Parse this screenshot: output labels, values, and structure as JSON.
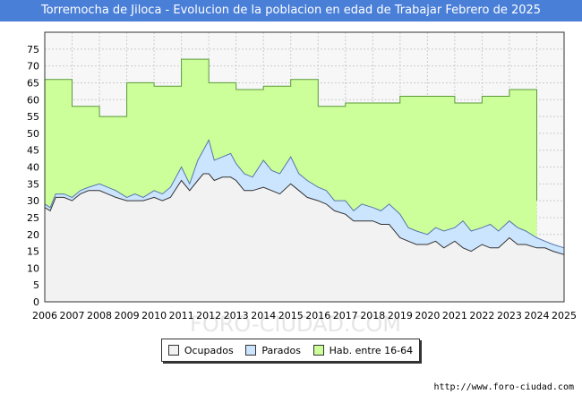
{
  "chart_data": {
    "type": "area",
    "title": "Torremocha de Jiloca - Evolucion de la poblacion en edad de Trabajar Febrero de 2025",
    "xlabel": "",
    "ylabel": "",
    "ylim": [
      0,
      80
    ],
    "xlim": [
      2006,
      2025
    ],
    "yticks": [
      0,
      5,
      10,
      15,
      20,
      25,
      30,
      35,
      40,
      45,
      50,
      55,
      60,
      65,
      70,
      75
    ],
    "xticks": [
      "2006",
      "2007",
      "2008",
      "2009",
      "2010",
      "2011",
      "2012",
      "2013",
      "2014",
      "2015",
      "2016",
      "2017",
      "2018",
      "2019",
      "2020",
      "2021",
      "2022",
      "2023",
      "2024",
      "2025"
    ],
    "grid": true,
    "legend_position": "bottom-center",
    "series": [
      {
        "name": "Hab. entre 16-64",
        "color": "#ccff99",
        "x": [
          2006,
          2007,
          2007,
          2008,
          2008,
          2009,
          2009,
          2010,
          2010,
          2011,
          2011,
          2012,
          2012,
          2013,
          2013,
          2014,
          2014,
          2015,
          2015,
          2016,
          2016,
          2017,
          2017,
          2018,
          2018,
          2019,
          2019,
          2020,
          2020,
          2021,
          2021,
          2022,
          2022,
          2023,
          2023,
          2024,
          2024
        ],
        "values": [
          66,
          66,
          58,
          58,
          55,
          55,
          65,
          65,
          64,
          64,
          72,
          72,
          65,
          65,
          63,
          63,
          64,
          64,
          66,
          66,
          58,
          58,
          59,
          59,
          59,
          59,
          61,
          61,
          61,
          61,
          59,
          59,
          61,
          61,
          63,
          63,
          30
        ]
      },
      {
        "name": "Parados",
        "color": "#cce5ff",
        "x": [
          2006,
          2006.2,
          2006.4,
          2006.7,
          2007,
          2007.3,
          2007.6,
          2008,
          2008.3,
          2008.6,
          2009,
          2009.3,
          2009.6,
          2010,
          2010.3,
          2010.6,
          2011,
          2011.3,
          2011.6,
          2011.8,
          2012,
          2012.2,
          2012.5,
          2012.8,
          2013,
          2013.3,
          2013.6,
          2014,
          2014.3,
          2014.6,
          2015,
          2015.3,
          2015.6,
          2016,
          2016.3,
          2016.6,
          2017,
          2017.3,
          2017.6,
          2018,
          2018.3,
          2018.6,
          2019,
          2019.3,
          2019.6,
          2020,
          2020.3,
          2020.6,
          2021,
          2021.3,
          2021.6,
          2022,
          2022.3,
          2022.6,
          2023,
          2023.3,
          2023.6,
          2024,
          2024.3,
          2024.6,
          2025
        ],
        "values": [
          29,
          28,
          32,
          32,
          31,
          33,
          34,
          35,
          34,
          33,
          31,
          32,
          31,
          33,
          32,
          34,
          40,
          35,
          42,
          45,
          48,
          42,
          43,
          44,
          41,
          38,
          37,
          42,
          39,
          38,
          43,
          38,
          36,
          34,
          33,
          30,
          30,
          27,
          29,
          28,
          27,
          29,
          26,
          22,
          21,
          20,
          22,
          21,
          22,
          24,
          21,
          22,
          23,
          21,
          24,
          22,
          21,
          19,
          18,
          17,
          16
        ]
      },
      {
        "name": "Ocupados",
        "color": "#f2f2f2",
        "x": [
          2006,
          2006.2,
          2006.4,
          2006.7,
          2007,
          2007.3,
          2007.6,
          2008,
          2008.3,
          2008.6,
          2009,
          2009.3,
          2009.6,
          2010,
          2010.3,
          2010.6,
          2011,
          2011.3,
          2011.6,
          2011.8,
          2012,
          2012.2,
          2012.5,
          2012.8,
          2013,
          2013.3,
          2013.6,
          2014,
          2014.3,
          2014.6,
          2015,
          2015.3,
          2015.6,
          2016,
          2016.3,
          2016.6,
          2017,
          2017.3,
          2017.6,
          2018,
          2018.3,
          2018.6,
          2019,
          2019.3,
          2019.6,
          2020,
          2020.3,
          2020.6,
          2021,
          2021.3,
          2021.6,
          2022,
          2022.3,
          2022.6,
          2023,
          2023.3,
          2023.6,
          2024,
          2024.3,
          2024.6,
          2025
        ],
        "values": [
          28,
          27,
          31,
          31,
          30,
          32,
          33,
          33,
          32,
          31,
          30,
          30,
          30,
          31,
          30,
          31,
          36,
          33,
          36,
          38,
          38,
          36,
          37,
          37,
          36,
          33,
          33,
          34,
          33,
          32,
          35,
          33,
          31,
          30,
          29,
          27,
          26,
          24,
          24,
          24,
          23,
          23,
          19,
          18,
          17,
          17,
          18,
          16,
          18,
          16,
          15,
          17,
          16,
          16,
          19,
          17,
          17,
          16,
          16,
          15,
          14
        ]
      }
    ]
  },
  "legend": {
    "ocupados": "Ocupados",
    "parados": "Parados",
    "hab": "Hab. entre 16-64"
  },
  "watermark": "FORO-CIUDAD.COM",
  "source": "http://www.foro-ciudad.com"
}
